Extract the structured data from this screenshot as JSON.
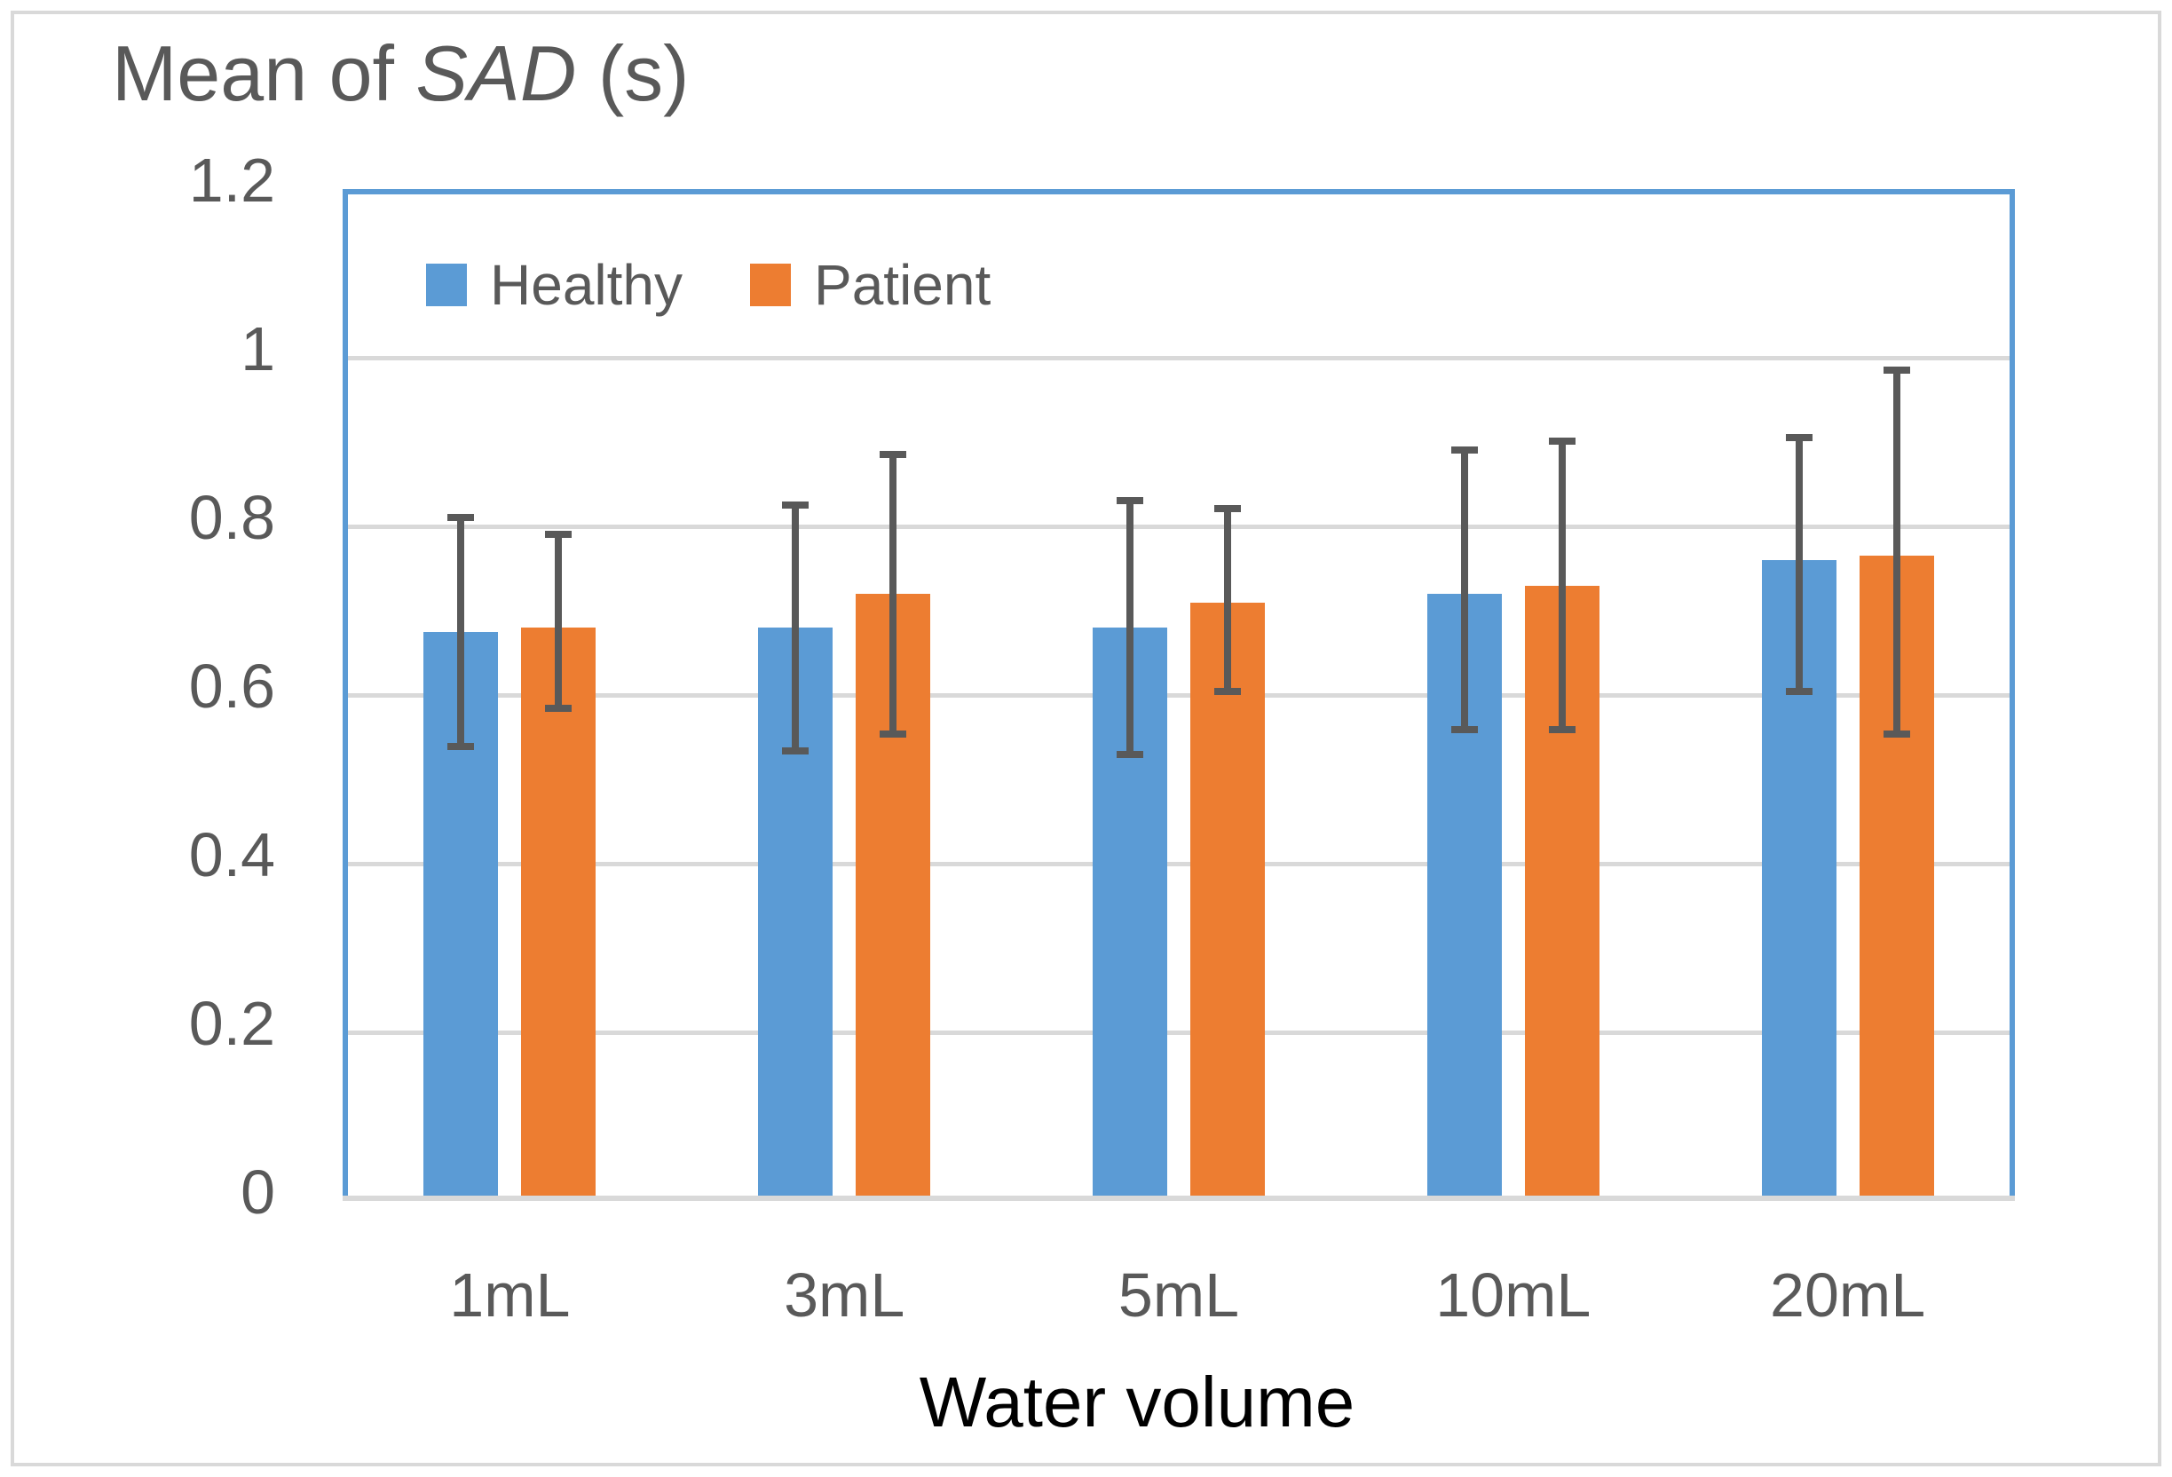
{
  "figure": {
    "title": "Mean of SAD (s)",
    "title_parts": {
      "prefix": "Mean of ",
      "italic": "SAD",
      "suffix": " (s)"
    }
  },
  "chart_data": {
    "type": "bar",
    "title": "Mean of SAD (s)",
    "xlabel": "Water volume",
    "ylabel": "Mean of SAD (s)",
    "categories": [
      "1mL",
      "3mL",
      "5mL",
      "10mL",
      "20mL"
    ],
    "series": [
      {
        "name": "Healthy",
        "color": "#5b9bd5",
        "values": [
          0.675,
          0.68,
          0.68,
          0.72,
          0.76
        ],
        "error_low": [
          0.535,
          0.53,
          0.525,
          0.555,
          0.6
        ],
        "error_high": [
          0.815,
          0.83,
          0.835,
          0.895,
          0.91
        ]
      },
      {
        "name": "Patient",
        "color": "#ed7d31",
        "values": [
          0.68,
          0.72,
          0.71,
          0.73,
          0.765
        ],
        "error_low": [
          0.58,
          0.55,
          0.6,
          0.555,
          0.55
        ],
        "error_high": [
          0.795,
          0.89,
          0.825,
          0.905,
          0.99
        ]
      }
    ],
    "ylim": [
      0,
      1.2
    ],
    "yticks": [
      0,
      0.2,
      0.4,
      0.6,
      0.8,
      1,
      1.2
    ],
    "ytick_labels": [
      "0",
      "0.2",
      "0.4",
      "0.6",
      "0.8",
      "1",
      "1.2"
    ],
    "grid": true,
    "legend_position": "top-left-inside",
    "error_bar_color": "#595959",
    "axis_text_color": "#595959",
    "gridline_color": "#d9d9d9",
    "plot_border_color": "#5b9bd5"
  }
}
